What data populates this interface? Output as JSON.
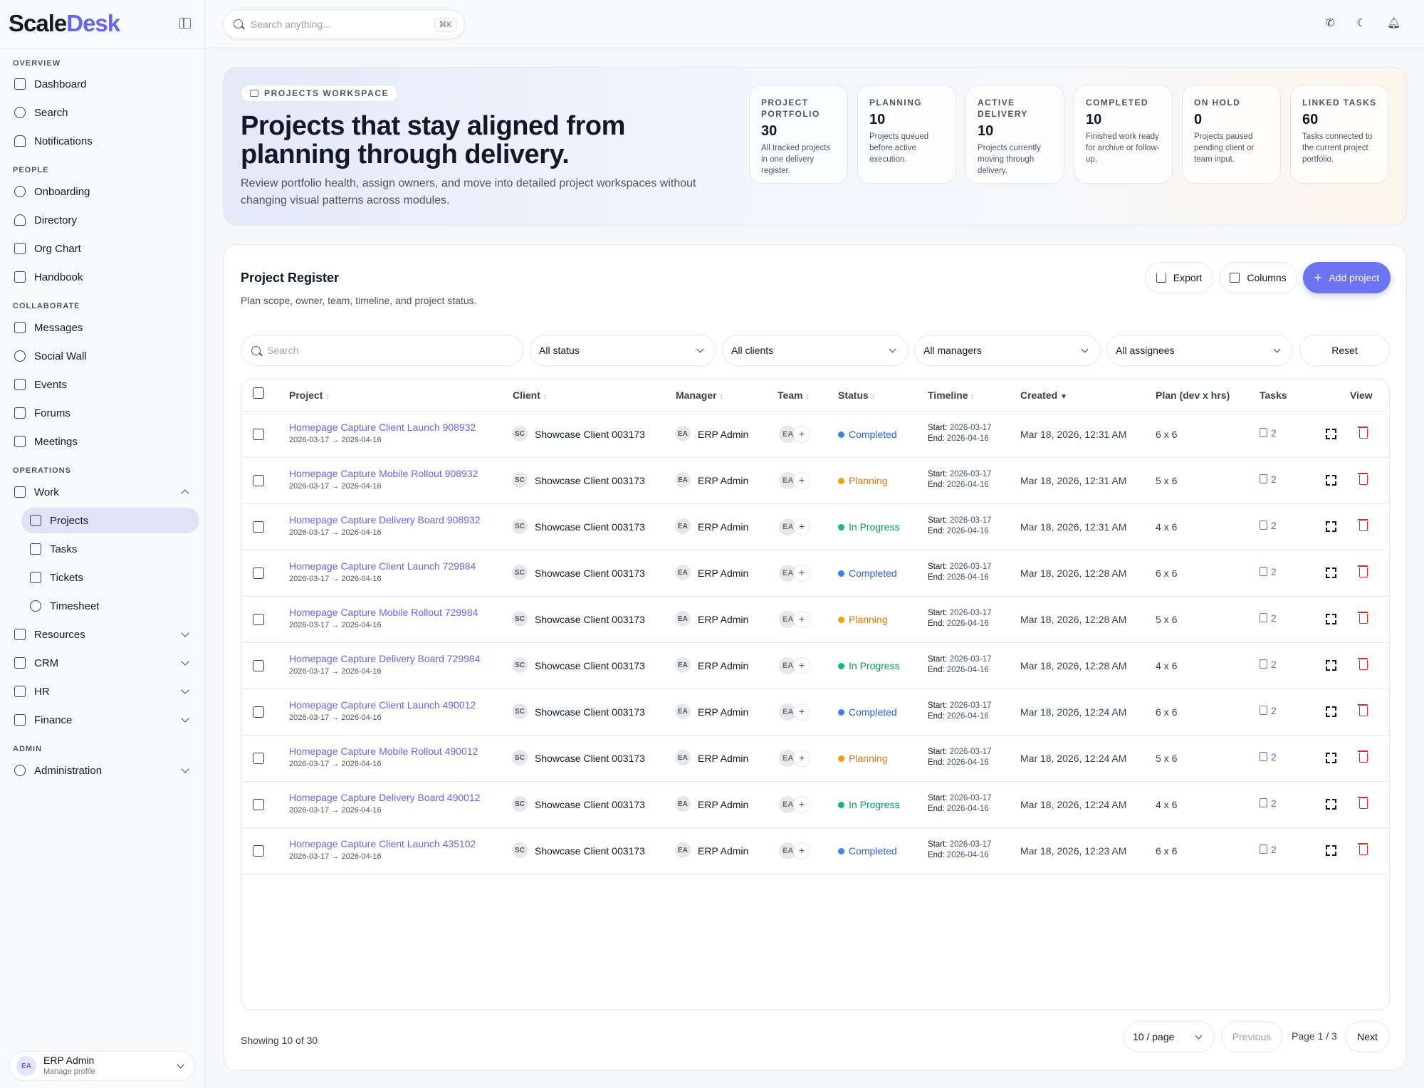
{
  "app": {
    "brand_part1": "Scale",
    "brand_part2": "Desk"
  },
  "search": {
    "placeholder": "Search anything...",
    "shortcut": "⌘K"
  },
  "sidebar": {
    "sections": [
      "OVERVIEW",
      "PEOPLE",
      "COLLABORATE",
      "OPERATIONS",
      "ADMIN"
    ],
    "items": [
      {
        "label": "Dashboard"
      },
      {
        "label": "Search"
      },
      {
        "label": "Notifications"
      },
      {
        "label": "Onboarding"
      },
      {
        "label": "Directory"
      },
      {
        "label": "Org Chart"
      },
      {
        "label": "Handbook"
      },
      {
        "label": "Messages"
      },
      {
        "label": "Social Wall"
      },
      {
        "label": "Events"
      },
      {
        "label": "Forums"
      },
      {
        "label": "Meetings"
      },
      {
        "label": "Work"
      },
      {
        "label": "Projects"
      },
      {
        "label": "Tasks"
      },
      {
        "label": "Tickets"
      },
      {
        "label": "Timesheet"
      },
      {
        "label": "Resources"
      },
      {
        "label": "CRM"
      },
      {
        "label": "HR"
      },
      {
        "label": "Finance"
      },
      {
        "label": "Administration"
      }
    ],
    "profile": {
      "initials": "EA",
      "name": "ERP Admin",
      "subtitle": "Manage profile"
    }
  },
  "hero": {
    "badge": "PROJECTS WORKSPACE",
    "title": "Projects that stay aligned from planning through delivery.",
    "description": "Review portfolio health, assign owners, and move into detailed project workspaces without changing visual patterns across modules.",
    "stats": [
      {
        "label": "PROJECT PORTFOLIO",
        "value": "30",
        "desc": "All tracked projects in one delivery register."
      },
      {
        "label": "PLANNING",
        "value": "10",
        "desc": "Projects queued before active execution."
      },
      {
        "label": "ACTIVE DELIVERY",
        "value": "10",
        "desc": "Projects currently moving through delivery."
      },
      {
        "label": "COMPLETED",
        "value": "10",
        "desc": "Finished work ready for archive or follow-up."
      },
      {
        "label": "ON HOLD",
        "value": "0",
        "desc": "Projects paused pending client or team input."
      },
      {
        "label": "LINKED TASKS",
        "value": "60",
        "desc": "Tasks connected to the current project portfolio."
      }
    ]
  },
  "register": {
    "title": "Project Register",
    "subtitle": "Plan scope, owner, team, timeline, and project status.",
    "export_label": "Export",
    "columns_label": "Columns",
    "add_label": "Add project",
    "filters": {
      "search_placeholder": "Search",
      "status": "All status",
      "clients": "All clients",
      "managers": "All managers",
      "assignees": "All assignees",
      "reset": "Reset"
    },
    "headers": {
      "project": "Project",
      "client": "Client",
      "manager": "Manager",
      "team": "Team",
      "status": "Status",
      "timeline": "Timeline",
      "created": "Created",
      "plan": "Plan (dev x hrs)",
      "tasks": "Tasks",
      "view": "View"
    },
    "sort_glyph": "↕",
    "sort_active_glyph": "▼",
    "start_label": "Start:",
    "end_label": "End:",
    "status_colors": {
      "Completed": "#3b82f6",
      "Planning": "#f59e0b",
      "In Progress": "#10b981"
    },
    "status_text_colors": {
      "Completed": "#2563eb",
      "Planning": "#d97706",
      "In Progress": "#059669"
    },
    "rows": [
      {
        "name": "Homepage Capture Client Launch 908932",
        "dates": "2026-03-17 → 2026-04-16",
        "client_initials": "SC",
        "client": "Showcase Client 003173",
        "manager_initials": "EA",
        "manager": "ERP Admin",
        "team": "EA",
        "status": "Completed",
        "start": "2026-03-17",
        "end": "2026-04-16",
        "created": "Mar 18, 2026, 12:31 AM",
        "plan": "6 x 6",
        "tasks": "2"
      },
      {
        "name": "Homepage Capture Mobile Rollout 908932",
        "dates": "2026-03-17 → 2026-04-16",
        "client_initials": "SC",
        "client": "Showcase Client 003173",
        "manager_initials": "EA",
        "manager": "ERP Admin",
        "team": "EA",
        "status": "Planning",
        "start": "2026-03-17",
        "end": "2026-04-16",
        "created": "Mar 18, 2026, 12:31 AM",
        "plan": "5 x 6",
        "tasks": "2"
      },
      {
        "name": "Homepage Capture Delivery Board 908932",
        "dates": "2026-03-17 → 2026-04-16",
        "client_initials": "SC",
        "client": "Showcase Client 003173",
        "manager_initials": "EA",
        "manager": "ERP Admin",
        "team": "EA",
        "status": "In Progress",
        "start": "2026-03-17",
        "end": "2026-04-16",
        "created": "Mar 18, 2026, 12:31 AM",
        "plan": "4 x 6",
        "tasks": "2"
      },
      {
        "name": "Homepage Capture Client Launch 729984",
        "dates": "2026-03-17 → 2026-04-16",
        "client_initials": "SC",
        "client": "Showcase Client 003173",
        "manager_initials": "EA",
        "manager": "ERP Admin",
        "team": "EA",
        "status": "Completed",
        "start": "2026-03-17",
        "end": "2026-04-16",
        "created": "Mar 18, 2026, 12:28 AM",
        "plan": "6 x 6",
        "tasks": "2"
      },
      {
        "name": "Homepage Capture Mobile Rollout 729984",
        "dates": "2026-03-17 → 2026-04-16",
        "client_initials": "SC",
        "client": "Showcase Client 003173",
        "manager_initials": "EA",
        "manager": "ERP Admin",
        "team": "EA",
        "status": "Planning",
        "start": "2026-03-17",
        "end": "2026-04-16",
        "created": "Mar 18, 2026, 12:28 AM",
        "plan": "5 x 6",
        "tasks": "2"
      },
      {
        "name": "Homepage Capture Delivery Board 729984",
        "dates": "2026-03-17 → 2026-04-16",
        "client_initials": "SC",
        "client": "Showcase Client 003173",
        "manager_initials": "EA",
        "manager": "ERP Admin",
        "team": "EA",
        "status": "In Progress",
        "start": "2026-03-17",
        "end": "2026-04-16",
        "created": "Mar 18, 2026, 12:28 AM",
        "plan": "4 x 6",
        "tasks": "2"
      },
      {
        "name": "Homepage Capture Client Launch 490012",
        "dates": "2026-03-17 → 2026-04-16",
        "client_initials": "SC",
        "client": "Showcase Client 003173",
        "manager_initials": "EA",
        "manager": "ERP Admin",
        "team": "EA",
        "status": "Completed",
        "start": "2026-03-17",
        "end": "2026-04-16",
        "created": "Mar 18, 2026, 12:24 AM",
        "plan": "6 x 6",
        "tasks": "2"
      },
      {
        "name": "Homepage Capture Mobile Rollout 490012",
        "dates": "2026-03-17 → 2026-04-16",
        "client_initials": "SC",
        "client": "Showcase Client 003173",
        "manager_initials": "EA",
        "manager": "ERP Admin",
        "team": "EA",
        "status": "Planning",
        "start": "2026-03-17",
        "end": "2026-04-16",
        "created": "Mar 18, 2026, 12:24 AM",
        "plan": "5 x 6",
        "tasks": "2"
      },
      {
        "name": "Homepage Capture Delivery Board 490012",
        "dates": "2026-03-17 → 2026-04-16",
        "client_initials": "SC",
        "client": "Showcase Client 003173",
        "manager_initials": "EA",
        "manager": "ERP Admin",
        "team": "EA",
        "status": "In Progress",
        "start": "2026-03-17",
        "end": "2026-04-16",
        "created": "Mar 18, 2026, 12:24 AM",
        "plan": "4 x 6",
        "tasks": "2"
      },
      {
        "name": "Homepage Capture Client Launch 435102",
        "dates": "2026-03-17 → 2026-04-16",
        "client_initials": "SC",
        "client": "Showcase Client 003173",
        "manager_initials": "EA",
        "manager": "ERP Admin",
        "team": "EA",
        "status": "Completed",
        "start": "2026-03-17",
        "end": "2026-04-16",
        "created": "Mar 18, 2026, 12:23 AM",
        "plan": "6 x 6",
        "tasks": "2"
      }
    ],
    "footer": {
      "showing": "Showing 10 of 30",
      "per_page": "10 / page",
      "previous": "Previous",
      "page": "Page 1 / 3",
      "next": "Next"
    }
  }
}
